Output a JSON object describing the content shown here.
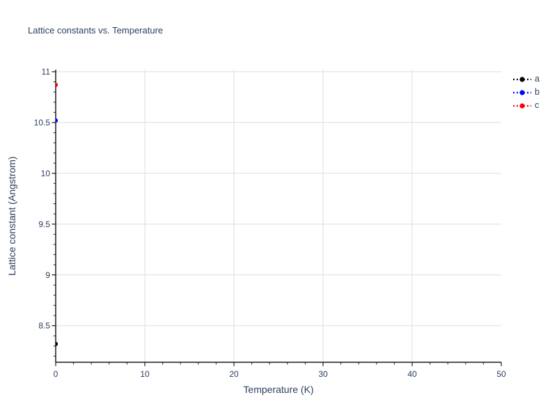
{
  "title": "Lattice constants vs. Temperature",
  "colors": {
    "title_text": "#2a3f5f",
    "tick_text": "#2a3f5f",
    "axis_line": "#1a1a1a",
    "grid": "#e5e5e5",
    "background": "#ffffff"
  },
  "legend": {
    "position": "top-right-outside",
    "items": [
      {
        "label": "a",
        "color": "#000000"
      },
      {
        "label": "b",
        "color": "#0000ff"
      },
      {
        "label": "c",
        "color": "#ff0000"
      }
    ]
  },
  "chart_data": {
    "type": "scatter",
    "title": "Lattice constants vs. Temperature",
    "xlabel": "Temperature (K)",
    "ylabel": "Lattice constant (Angstrom)",
    "xlim": [
      0,
      50
    ],
    "ylim": [
      8.14,
      11.02
    ],
    "x_major_ticks": [
      0,
      10,
      20,
      30,
      40,
      50
    ],
    "x_minor_step": 2,
    "y_major_ticks": [
      8.5,
      9,
      9.5,
      10,
      10.5,
      11
    ],
    "y_minor_step": 0.1,
    "grid": true,
    "legend_position": "top-right-outside",
    "series": [
      {
        "name": "a",
        "color": "#000000",
        "marker": "circle",
        "line_style": "dotted",
        "x": [
          0
        ],
        "y": [
          8.32
        ]
      },
      {
        "name": "b",
        "color": "#0000ff",
        "marker": "circle",
        "line_style": "dotted",
        "x": [
          0
        ],
        "y": [
          10.52
        ]
      },
      {
        "name": "c",
        "color": "#ff0000",
        "marker": "circle",
        "line_style": "dotted",
        "x": [
          0
        ],
        "y": [
          10.87
        ]
      }
    ]
  }
}
